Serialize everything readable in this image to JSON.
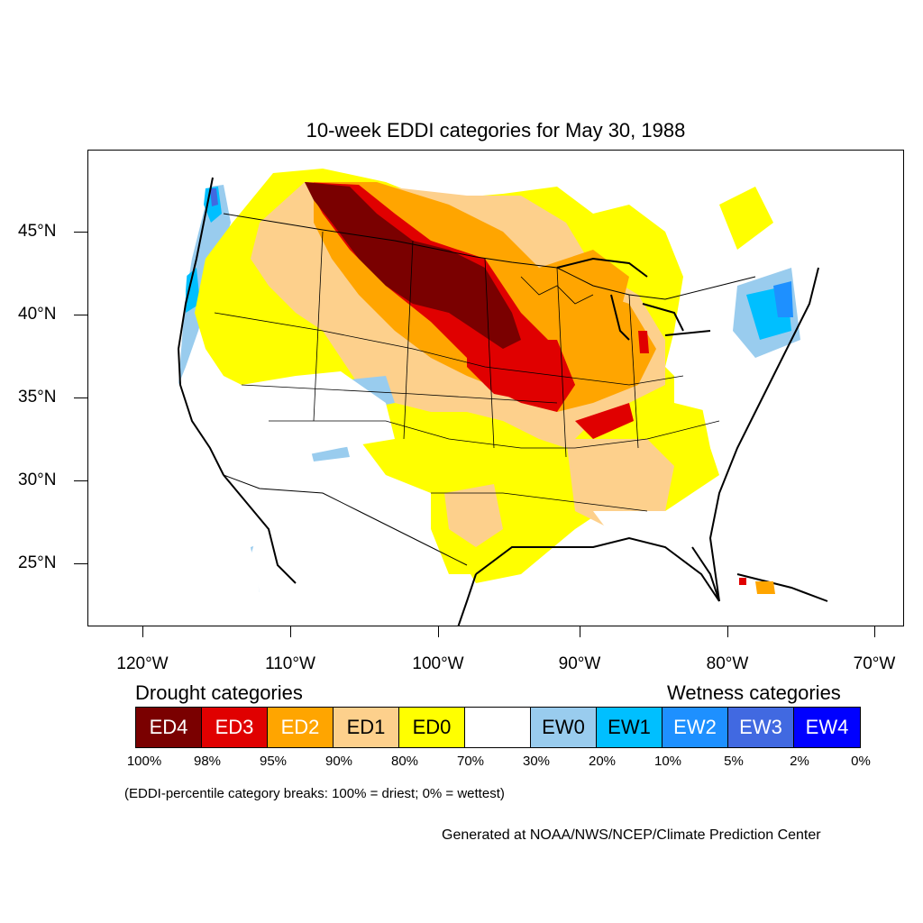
{
  "title": "10-week EDDI categories for May 30, 1988",
  "map": {
    "latitude_labels": [
      "45°N",
      "40°N",
      "35°N",
      "30°N",
      "25°N"
    ],
    "longitude_labels": [
      "120°W",
      "110°W",
      "100°W",
      "90°W",
      "80°W",
      "70°W"
    ],
    "colors": {
      "ED4": "#7a0000",
      "ED3": "#e00000",
      "ED2": "#ffa500",
      "ED1": "#fdd08c",
      "ED0": "#ffff00",
      "none": "#ffffff",
      "EW0": "#99ccee",
      "EW1": "#00bfff",
      "EW2": "#1e90ff",
      "EW3": "#4169e1",
      "EW4": "#0000ff"
    }
  },
  "legend": {
    "drought_heading": "Drought categories",
    "wetness_heading": "Wetness categories",
    "categories": [
      {
        "label": "ED4",
        "color": "#7a0000",
        "text_color": "#ffffff"
      },
      {
        "label": "ED3",
        "color": "#e00000",
        "text_color": "#ffffff"
      },
      {
        "label": "ED2",
        "color": "#ffa500",
        "text_color": "#ffffff"
      },
      {
        "label": "ED1",
        "color": "#fdd08c",
        "text_color": "#000000"
      },
      {
        "label": "ED0",
        "color": "#ffff00",
        "text_color": "#000000"
      },
      {
        "label": "",
        "color": "#ffffff",
        "text_color": "#000000"
      },
      {
        "label": "EW0",
        "color": "#99ccee",
        "text_color": "#000000"
      },
      {
        "label": "EW1",
        "color": "#00bfff",
        "text_color": "#000000"
      },
      {
        "label": "EW2",
        "color": "#1e90ff",
        "text_color": "#ffffff"
      },
      {
        "label": "EW3",
        "color": "#4169e1",
        "text_color": "#ffffff"
      },
      {
        "label": "EW4",
        "color": "#0000ff",
        "text_color": "#ffffff"
      }
    ],
    "percentiles": [
      "100%",
      "98%",
      "95%",
      "90%",
      "80%",
      "70%",
      "30%",
      "20%",
      "10%",
      "5%",
      "2%",
      "0%"
    ],
    "note": "(EDDI-percentile category breaks: 100% = driest; 0% = wettest)"
  },
  "credit": "Generated at NOAA/NWS/NCEP/Climate Prediction Center"
}
